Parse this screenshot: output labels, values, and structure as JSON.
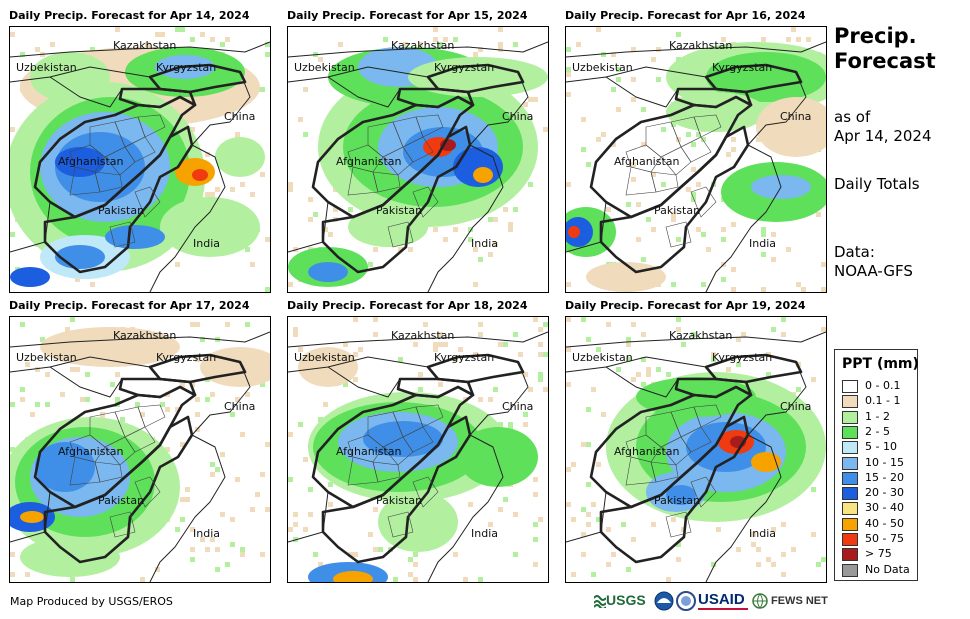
{
  "panels": [
    {
      "title": "Daily Precip. Forecast for Apr 14, 2024"
    },
    {
      "title": "Daily Precip. Forecast for Apr 15, 2024"
    },
    {
      "title": "Daily Precip. Forecast for Apr 16, 2024"
    },
    {
      "title": "Daily Precip. Forecast for Apr 17, 2024"
    },
    {
      "title": "Daily Precip. Forecast for Apr 18, 2024"
    },
    {
      "title": "Daily Precip. Forecast for Apr 19, 2024"
    }
  ],
  "map_labels": {
    "kazakhstan": "Kazakhstan",
    "uzbekistan": "Uzbekistan",
    "kyrgyzstan": "Kyrgyzstan",
    "china": "China",
    "afghanistan": "Afghanistan",
    "pakistan": "Pakistan",
    "india": "India"
  },
  "sidebar": {
    "title_line1": "Precip.",
    "title_line2": "Forecast",
    "asof_line1": "as of",
    "asof_line2": "Apr 14, 2024",
    "totals": "Daily Totals",
    "data_line1": "Data:",
    "data_line2": "NOAA-GFS"
  },
  "legend": {
    "title": "PPT (mm)",
    "items": [
      {
        "label": "0 - 0.1",
        "color": "#ffffff"
      },
      {
        "label": "0.1 - 1",
        "color": "#f0dcbc"
      },
      {
        "label": "1 - 2",
        "color": "#b2f0a0"
      },
      {
        "label": "2 - 5",
        "color": "#5ee05a"
      },
      {
        "label": "5 - 10",
        "color": "#bfe8f8"
      },
      {
        "label": "10 - 15",
        "color": "#7ab8ef"
      },
      {
        "label": "15 - 20",
        "color": "#3f8fe8"
      },
      {
        "label": "20 - 30",
        "color": "#1c5ee0"
      },
      {
        "label": "30 - 40",
        "color": "#f8e480"
      },
      {
        "label": "40 - 50",
        "color": "#f6a300"
      },
      {
        "label": "50 - 75",
        "color": "#f03a10"
      },
      {
        "label": "> 75",
        "color": "#a81c1c"
      },
      {
        "label": "No Data",
        "color": "#999999"
      }
    ]
  },
  "footer": {
    "credit": "Map Produced by USGS/EROS",
    "logo_usgs": "USGS",
    "logo_usaid": "USAID",
    "logo_fewsnet": "FEWS NET"
  }
}
